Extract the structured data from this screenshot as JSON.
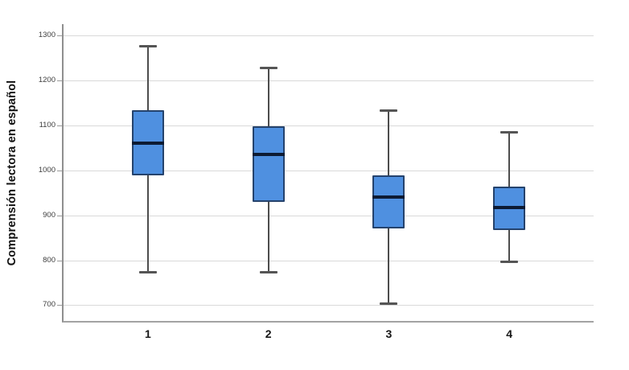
{
  "chart_data": {
    "type": "boxplot",
    "title": "",
    "ylabel": "Comprensión lectora en español",
    "xlabel": "",
    "categories": [
      "1",
      "2",
      "3",
      "4"
    ],
    "y_ticks": [
      700,
      800,
      900,
      1000,
      1100,
      1200,
      1300
    ],
    "ylim": [
      665,
      1325
    ],
    "grid": true,
    "legend": "none",
    "boxes": [
      {
        "category": "1",
        "whisker_low": 773,
        "q1": 989,
        "median": 1060,
        "q3": 1133,
        "whisker_high": 1276
      },
      {
        "category": "2",
        "whisker_low": 773,
        "q1": 930,
        "median": 1035,
        "q3": 1097,
        "whisker_high": 1228
      },
      {
        "category": "3",
        "whisker_low": 703,
        "q1": 870,
        "median": 940,
        "q3": 988,
        "whisker_high": 1133
      },
      {
        "category": "4",
        "whisker_low": 797,
        "q1": 868,
        "median": 917,
        "q3": 964,
        "whisker_high": 1084
      }
    ],
    "colors": {
      "box_fill": "#4f90e0",
      "box_border": "#25436d",
      "median": "#0d1b33",
      "whisker": "#4d4d4d",
      "gridline": "#d9d9d9",
      "axis": "#8f8f8f",
      "tick_label": "#3d3d3d",
      "x_label": "#161616",
      "background": "#ffffff"
    }
  }
}
